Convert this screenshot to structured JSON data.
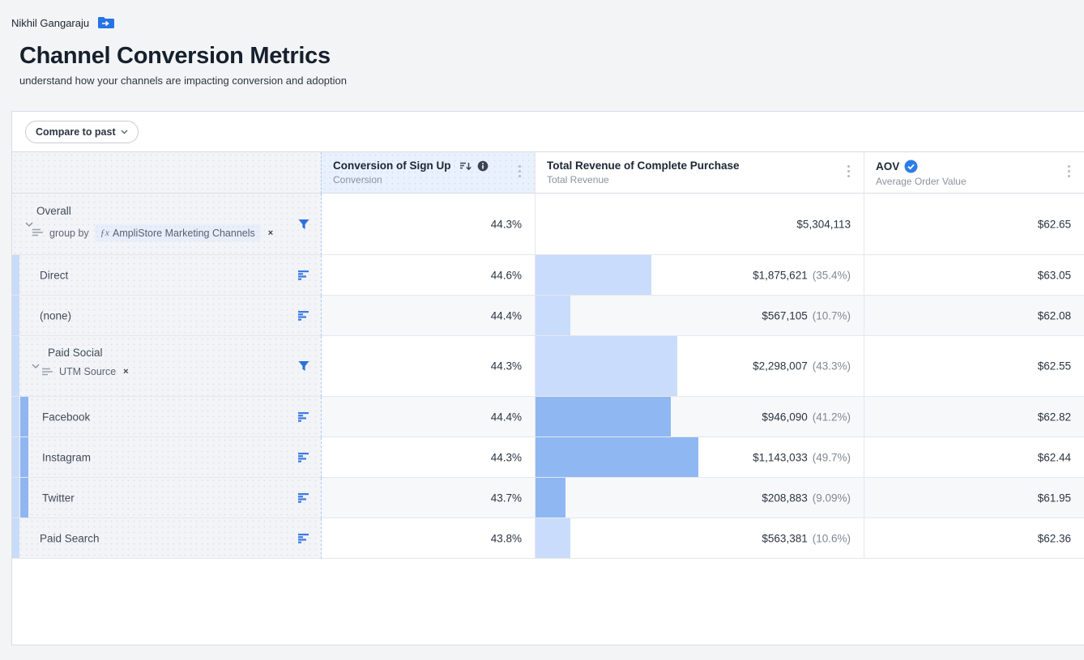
{
  "page": {
    "breadcrumb": "Nikhil Gangaraju",
    "title": "Channel Conversion Metrics",
    "subtitle": "understand how your channels are impacting conversion and adoption"
  },
  "toolbar": {
    "compare_button": "Compare to past"
  },
  "table": {
    "columns": [
      {
        "title": "Conversion of Sign Up",
        "subtitle": "Conversion",
        "highlighted": true
      },
      {
        "title": "Total Revenue of Complete Purchase",
        "subtitle": "Total Revenue"
      },
      {
        "title": "AOV",
        "subtitle": "Average Order Value",
        "verified": true
      }
    ],
    "rows": [
      {
        "label": "Overall",
        "group_by_label": "group by",
        "chip_fx": "ƒx",
        "chip": "AmpliStore Marketing Channels",
        "remove": "×",
        "conversion": "44.3%",
        "revenue": "$5,304,113",
        "revenue_pct": "",
        "aov": "$62.65",
        "bar_pct": 0
      },
      {
        "label": "Direct",
        "conversion": "44.6%",
        "revenue": "$1,875,621",
        "revenue_pct": "(35.4%)",
        "aov": "$63.05",
        "bar_pct": 35.4
      },
      {
        "label": "(none)",
        "conversion": "44.4%",
        "revenue": "$567,105",
        "revenue_pct": "(10.7%)",
        "aov": "$62.08",
        "bar_pct": 10.7
      },
      {
        "label": "Paid Social",
        "chip": "UTM Source",
        "remove": "×",
        "conversion": "44.3%",
        "revenue": "$2,298,007",
        "revenue_pct": "(43.3%)",
        "aov": "$62.55",
        "bar_pct": 43.3
      },
      {
        "label": "Facebook",
        "conversion": "44.4%",
        "revenue": "$946,090",
        "revenue_pct": "(41.2%)",
        "aov": "$62.82",
        "bar_pct": 41.2
      },
      {
        "label": "Instagram",
        "conversion": "44.3%",
        "revenue": "$1,143,033",
        "revenue_pct": "(49.7%)",
        "aov": "$62.44",
        "bar_pct": 49.7
      },
      {
        "label": "Twitter",
        "conversion": "43.7%",
        "revenue": "$208,883",
        "revenue_pct": "(9.09%)",
        "aov": "$61.95",
        "bar_pct": 9.09
      },
      {
        "label": "Paid Search",
        "conversion": "43.8%",
        "revenue": "$563,381",
        "revenue_pct": "(10.6%)",
        "aov": "$62.36",
        "bar_pct": 10.6
      }
    ]
  },
  "colors": {
    "accent_blue": "#2e6fdf",
    "bar_light": "#c9dcfb",
    "bar_medium": "#8fb8f3",
    "strip_light": "#c8dbf9",
    "strip_medium": "#90b6f2",
    "verified_badge": "#2d7ce8",
    "highlighted_header_bg": "#e9f1fd"
  }
}
